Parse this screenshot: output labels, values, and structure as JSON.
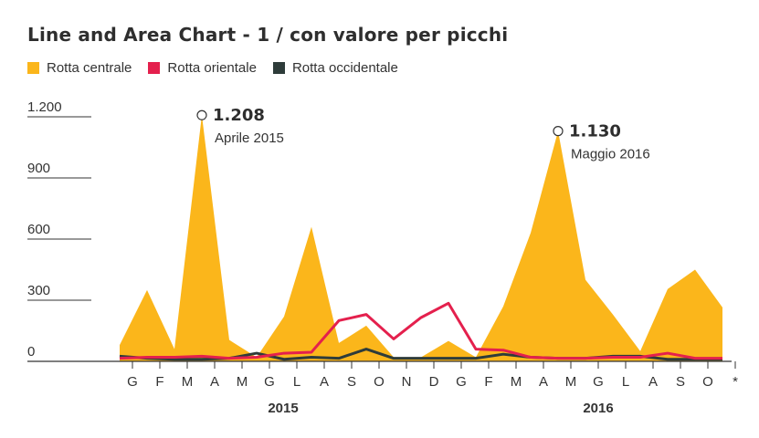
{
  "title": "Line and Area Chart - 1 / con valore per picchi",
  "colors": {
    "central": "#fbb61b",
    "eastern": "#e4204d",
    "western": "#2e3c3a",
    "grid": "#333333"
  },
  "chart_data": {
    "type": "area",
    "categories": [
      "G",
      "F",
      "M",
      "A",
      "M",
      "G",
      "L",
      "A",
      "S",
      "O",
      "N",
      "D",
      "G",
      "F",
      "M",
      "A",
      "M",
      "G",
      "L",
      "A",
      "S",
      "O",
      "*"
    ],
    "years": [
      {
        "label": "2015",
        "start": 0,
        "end": 11
      },
      {
        "label": "2016",
        "start": 12,
        "end": 22
      }
    ],
    "y_ticks": [
      {
        "value": 0,
        "label": "0"
      },
      {
        "value": 300,
        "label": "300"
      },
      {
        "value": 600,
        "label": "600"
      },
      {
        "value": 900,
        "label": "900"
      },
      {
        "value": 1200,
        "label": "1.200"
      }
    ],
    "ylim": [
      0,
      1250
    ],
    "series": [
      {
        "name": "Rotta centrale",
        "kind": "area",
        "values": [
          80,
          350,
          60,
          1208,
          105,
          20,
          220,
          660,
          90,
          175,
          20,
          20,
          100,
          20,
          270,
          630,
          1130,
          400,
          230,
          50,
          355,
          450,
          265
        ]
      },
      {
        "name": "Rotta orientale",
        "kind": "line",
        "values": [
          15,
          20,
          20,
          25,
          15,
          20,
          40,
          45,
          200,
          230,
          110,
          215,
          285,
          60,
          55,
          20,
          15,
          15,
          20,
          20,
          40,
          15,
          15
        ]
      },
      {
        "name": "Rotta occidentale",
        "kind": "line",
        "values": [
          25,
          15,
          10,
          10,
          15,
          40,
          10,
          20,
          15,
          60,
          15,
          15,
          15,
          15,
          35,
          20,
          15,
          15,
          25,
          25,
          10,
          10,
          10
        ]
      }
    ],
    "annotations": [
      {
        "index": 3,
        "value": "1.208",
        "date": "Aprile 2015"
      },
      {
        "index": 16,
        "value": "1.130",
        "date": "Maggio 2016"
      }
    ],
    "legend_position": "top-left",
    "grid": true
  }
}
